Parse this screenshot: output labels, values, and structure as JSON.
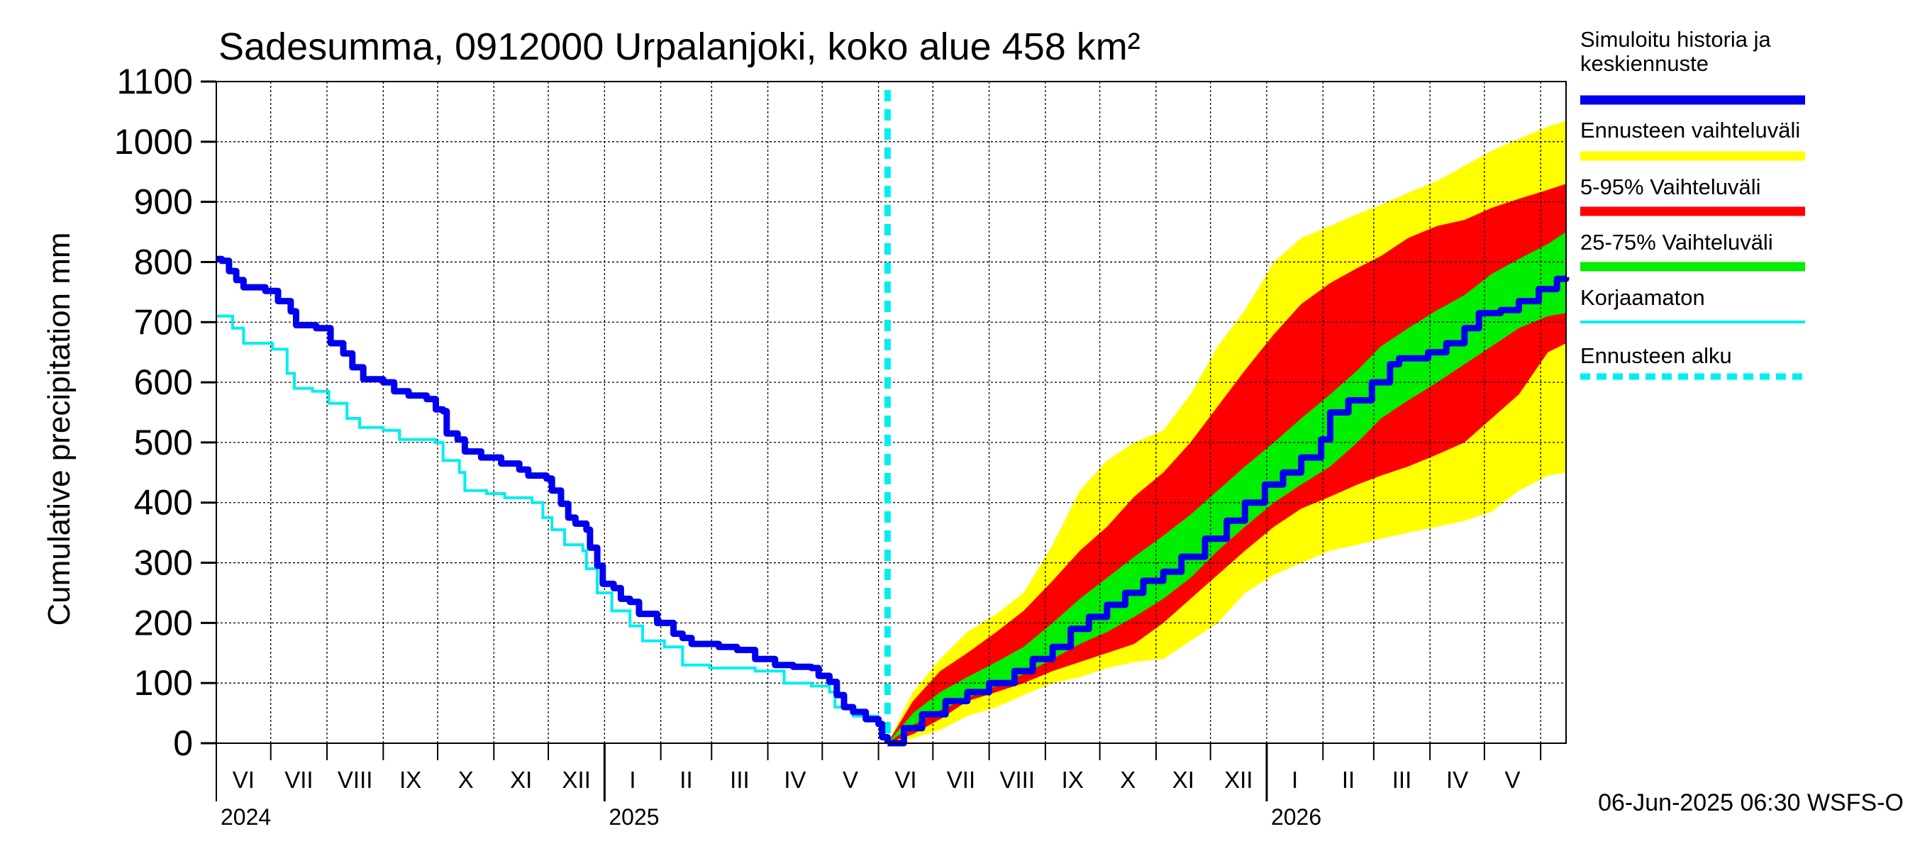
{
  "chart_data": {
    "type": "area",
    "title": "Sadesumma, 0912000 Urpalanjoki, koko alue 458 km²",
    "ylabel": "Cumulative precipitation   mm",
    "xlabel": "",
    "ylim": [
      0,
      1100
    ],
    "xlim": [
      "2024-06-01",
      "2026-06-15"
    ],
    "y_ticks": [
      0,
      100,
      200,
      300,
      400,
      500,
      600,
      700,
      800,
      900,
      1000,
      1100
    ],
    "grid": true,
    "legend_position": "right",
    "month_labels": [
      "VI",
      "VII",
      "VIII",
      "IX",
      "X",
      "XI",
      "XII",
      "I",
      "II",
      "III",
      "IV",
      "V",
      "VI",
      "VII",
      "VIII",
      "IX",
      "X",
      "XI",
      "XII",
      "I",
      "II",
      "III",
      "IV",
      "V"
    ],
    "year_labels": [
      {
        "label": "2024",
        "date": "2024-06-01"
      },
      {
        "label": "2025",
        "date": "2025-01-01"
      },
      {
        "label": "2026",
        "date": "2026-01-01"
      }
    ],
    "forecast_start": "2025-06-06",
    "footer": "06-Jun-2025 06:30 WSFS-O",
    "colors": {
      "history": "#0000ee",
      "uncorrected": "#00eeee",
      "range_full": "#ffff00",
      "range_5_95": "#ff0000",
      "range_25_75": "#00ee00",
      "forecast_start": "#00eeee"
    },
    "legend": [
      {
        "label": "Simuloitu historia ja keskiennuste",
        "color": "#0000ee",
        "style": "thick"
      },
      {
        "label": "Ennusteen vaihteluväli",
        "color": "#ffff00",
        "style": "thick"
      },
      {
        "label": "5-95% Vaihteluväli",
        "color": "#ff0000",
        "style": "thick"
      },
      {
        "label": "25-75% Vaihteluväli",
        "color": "#00ee00",
        "style": "thick"
      },
      {
        "label": "Korjaamaton",
        "color": "#00eeee",
        "style": "thin"
      },
      {
        "label": "Ennusteen alku",
        "color": "#00eeee",
        "style": "dashed"
      }
    ],
    "series": [
      {
        "name": "Simuloitu historia ja keskiennuste",
        "points": [
          [
            "2024-06-01",
            805
          ],
          [
            "2024-06-04",
            802
          ],
          [
            "2024-06-08",
            785
          ],
          [
            "2024-06-12",
            770
          ],
          [
            "2024-06-16",
            758
          ],
          [
            "2024-06-28",
            752
          ],
          [
            "2024-07-05",
            735
          ],
          [
            "2024-07-12",
            718
          ],
          [
            "2024-07-15",
            695
          ],
          [
            "2024-07-26",
            690
          ],
          [
            "2024-08-03",
            665
          ],
          [
            "2024-08-10",
            648
          ],
          [
            "2024-08-15",
            625
          ],
          [
            "2024-08-21",
            605
          ],
          [
            "2024-09-01",
            600
          ],
          [
            "2024-09-07",
            585
          ],
          [
            "2024-09-15",
            578
          ],
          [
            "2024-09-25",
            572
          ],
          [
            "2024-09-30",
            555
          ],
          [
            "2024-10-04",
            552
          ],
          [
            "2024-10-06",
            515
          ],
          [
            "2024-10-12",
            505
          ],
          [
            "2024-10-16",
            485
          ],
          [
            "2024-10-25",
            475
          ],
          [
            "2024-11-05",
            465
          ],
          [
            "2024-11-15",
            455
          ],
          [
            "2024-11-20",
            445
          ],
          [
            "2024-11-30",
            440
          ],
          [
            "2024-12-03",
            420
          ],
          [
            "2024-12-08",
            398
          ],
          [
            "2024-12-12",
            375
          ],
          [
            "2024-12-16",
            365
          ],
          [
            "2024-12-22",
            355
          ],
          [
            "2024-12-24",
            325
          ],
          [
            "2024-12-28",
            295
          ],
          [
            "2024-12-31",
            265
          ],
          [
            "2025-01-06",
            258
          ],
          [
            "2025-01-10",
            240
          ],
          [
            "2025-01-15",
            235
          ],
          [
            "2025-01-20",
            215
          ],
          [
            "2025-01-30",
            200
          ],
          [
            "2025-02-08",
            182
          ],
          [
            "2025-02-13",
            175
          ],
          [
            "2025-02-18",
            165
          ],
          [
            "2025-03-05",
            160
          ],
          [
            "2025-03-15",
            155
          ],
          [
            "2025-03-25",
            140
          ],
          [
            "2025-04-05",
            130
          ],
          [
            "2025-04-15",
            127
          ],
          [
            "2025-04-25",
            125
          ],
          [
            "2025-04-29",
            112
          ],
          [
            "2025-05-05",
            102
          ],
          [
            "2025-05-09",
            80
          ],
          [
            "2025-05-13",
            60
          ],
          [
            "2025-05-18",
            52
          ],
          [
            "2025-05-25",
            40
          ],
          [
            "2025-06-01",
            32
          ],
          [
            "2025-06-03",
            10
          ],
          [
            "2025-06-06",
            0
          ]
        ]
      },
      {
        "name": "Korjaamaton",
        "points": [
          [
            "2024-06-01",
            710
          ],
          [
            "2024-06-06",
            710
          ],
          [
            "2024-06-10",
            690
          ],
          [
            "2024-06-16",
            665
          ],
          [
            "2024-07-02",
            655
          ],
          [
            "2024-07-10",
            615
          ],
          [
            "2024-07-14",
            590
          ],
          [
            "2024-07-24",
            585
          ],
          [
            "2024-08-02",
            565
          ],
          [
            "2024-08-12",
            540
          ],
          [
            "2024-08-19",
            525
          ],
          [
            "2024-09-01",
            520
          ],
          [
            "2024-09-10",
            505
          ],
          [
            "2024-09-30",
            500
          ],
          [
            "2024-10-04",
            470
          ],
          [
            "2024-10-13",
            450
          ],
          [
            "2024-10-16",
            420
          ],
          [
            "2024-10-28",
            415
          ],
          [
            "2024-11-07",
            408
          ],
          [
            "2024-11-22",
            400
          ],
          [
            "2024-11-28",
            375
          ],
          [
            "2024-12-03",
            355
          ],
          [
            "2024-12-10",
            330
          ],
          [
            "2024-12-20",
            320
          ],
          [
            "2024-12-22",
            290
          ],
          [
            "2024-12-28",
            250
          ],
          [
            "2025-01-05",
            220
          ],
          [
            "2025-01-15",
            195
          ],
          [
            "2025-01-22",
            170
          ],
          [
            "2025-02-03",
            160
          ],
          [
            "2025-02-13",
            130
          ],
          [
            "2025-02-28",
            125
          ],
          [
            "2025-03-25",
            120
          ],
          [
            "2025-04-10",
            100
          ],
          [
            "2025-04-25",
            95
          ],
          [
            "2025-05-05",
            85
          ],
          [
            "2025-05-08",
            60
          ],
          [
            "2025-05-18",
            45
          ],
          [
            "2025-05-31",
            35
          ],
          [
            "2025-06-03",
            10
          ],
          [
            "2025-06-06",
            0
          ]
        ]
      },
      {
        "name": "Keskiennuste",
        "points": [
          [
            "2025-06-06",
            0
          ],
          [
            "2025-06-15",
            25
          ],
          [
            "2025-06-25",
            48
          ],
          [
            "2025-07-08",
            70
          ],
          [
            "2025-07-20",
            85
          ],
          [
            "2025-08-01",
            100
          ],
          [
            "2025-08-15",
            120
          ],
          [
            "2025-08-25",
            140
          ],
          [
            "2025-09-05",
            160
          ],
          [
            "2025-09-15",
            190
          ],
          [
            "2025-09-25",
            210
          ],
          [
            "2025-10-05",
            230
          ],
          [
            "2025-10-15",
            250
          ],
          [
            "2025-10-25",
            270
          ],
          [
            "2025-11-05",
            285
          ],
          [
            "2025-11-15",
            310
          ],
          [
            "2025-11-28",
            340
          ],
          [
            "2025-12-10",
            370
          ],
          [
            "2025-12-20",
            400
          ],
          [
            "2025-12-31",
            430
          ],
          [
            "2026-01-10",
            450
          ],
          [
            "2026-01-20",
            475
          ],
          [
            "2026-01-31",
            505
          ],
          [
            "2026-02-05",
            550
          ],
          [
            "2026-02-15",
            570
          ],
          [
            "2026-02-28",
            600
          ],
          [
            "2026-03-10",
            630
          ],
          [
            "2026-03-15",
            640
          ],
          [
            "2026-03-31",
            650
          ],
          [
            "2026-04-10",
            665
          ],
          [
            "2026-04-20",
            690
          ],
          [
            "2026-04-28",
            715
          ],
          [
            "2026-05-10",
            720
          ],
          [
            "2026-05-20",
            735
          ],
          [
            "2026-05-31",
            755
          ],
          [
            "2026-06-10",
            772
          ],
          [
            "2026-06-15",
            775
          ]
        ]
      },
      {
        "name": "Ennusteen vaihteluväli",
        "points": [
          [
            "2025-06-06",
            0,
            0
          ],
          [
            "2025-06-20",
            8,
            85
          ],
          [
            "2025-07-05",
            22,
            140
          ],
          [
            "2025-07-20",
            45,
            185
          ],
          [
            "2025-08-05",
            60,
            215
          ],
          [
            "2025-08-20",
            80,
            250
          ],
          [
            "2025-09-05",
            100,
            330
          ],
          [
            "2025-09-20",
            110,
            420
          ],
          [
            "2025-10-05",
            125,
            470
          ],
          [
            "2025-10-20",
            135,
            500
          ],
          [
            "2025-11-05",
            140,
            520
          ],
          [
            "2025-11-20",
            170,
            580
          ],
          [
            "2025-12-05",
            200,
            660
          ],
          [
            "2025-12-20",
            250,
            720
          ],
          [
            "2026-01-05",
            280,
            800
          ],
          [
            "2026-01-20",
            300,
            840
          ],
          [
            "2026-02-05",
            320,
            860
          ],
          [
            "2026-02-20",
            330,
            880
          ],
          [
            "2026-03-05",
            340,
            895
          ],
          [
            "2026-03-20",
            350,
            915
          ],
          [
            "2026-04-05",
            360,
            935
          ],
          [
            "2026-04-20",
            370,
            960
          ],
          [
            "2026-05-05",
            385,
            985
          ],
          [
            "2026-05-20",
            420,
            1005
          ],
          [
            "2026-06-05",
            445,
            1025
          ],
          [
            "2026-06-15",
            450,
            1035
          ]
        ]
      },
      {
        "name": "5-95% Vaihteluväli",
        "points": [
          [
            "2025-06-06",
            0,
            0
          ],
          [
            "2025-06-20",
            15,
            70
          ],
          [
            "2025-07-05",
            40,
            120
          ],
          [
            "2025-07-20",
            70,
            150
          ],
          [
            "2025-08-05",
            85,
            185
          ],
          [
            "2025-08-20",
            100,
            220
          ],
          [
            "2025-09-05",
            120,
            270
          ],
          [
            "2025-09-20",
            135,
            320
          ],
          [
            "2025-10-05",
            150,
            360
          ],
          [
            "2025-10-20",
            165,
            410
          ],
          [
            "2025-11-05",
            200,
            450
          ],
          [
            "2025-11-20",
            240,
            500
          ],
          [
            "2025-12-05",
            280,
            560
          ],
          [
            "2025-12-20",
            320,
            620
          ],
          [
            "2026-01-05",
            360,
            680
          ],
          [
            "2026-01-20",
            390,
            730
          ],
          [
            "2026-02-05",
            410,
            765
          ],
          [
            "2026-02-20",
            430,
            790
          ],
          [
            "2026-03-05",
            445,
            810
          ],
          [
            "2026-03-20",
            460,
            840
          ],
          [
            "2026-04-05",
            480,
            860
          ],
          [
            "2026-04-20",
            500,
            870
          ],
          [
            "2026-05-05",
            540,
            890
          ],
          [
            "2026-05-20",
            580,
            905
          ],
          [
            "2026-06-05",
            650,
            920
          ],
          [
            "2026-06-15",
            665,
            930
          ]
        ]
      },
      {
        "name": "25-75% Vaihteluväli",
        "points": [
          [
            "2025-06-06",
            0,
            0
          ],
          [
            "2025-06-20",
            30,
            50
          ],
          [
            "2025-07-05",
            55,
            85
          ],
          [
            "2025-07-20",
            75,
            110
          ],
          [
            "2025-08-05",
            95,
            135
          ],
          [
            "2025-08-20",
            115,
            160
          ],
          [
            "2025-09-05",
            140,
            200
          ],
          [
            "2025-09-20",
            165,
            240
          ],
          [
            "2025-10-05",
            185,
            275
          ],
          [
            "2025-10-20",
            210,
            310
          ],
          [
            "2025-11-05",
            240,
            345
          ],
          [
            "2025-11-20",
            275,
            380
          ],
          [
            "2025-12-05",
            320,
            420
          ],
          [
            "2025-12-20",
            360,
            460
          ],
          [
            "2026-01-05",
            400,
            500
          ],
          [
            "2026-01-20",
            430,
            540
          ],
          [
            "2026-02-05",
            460,
            580
          ],
          [
            "2026-02-20",
            500,
            620
          ],
          [
            "2026-03-05",
            540,
            660
          ],
          [
            "2026-03-20",
            570,
            690
          ],
          [
            "2026-04-05",
            600,
            720
          ],
          [
            "2026-04-20",
            630,
            745
          ],
          [
            "2026-05-05",
            660,
            780
          ],
          [
            "2026-05-20",
            690,
            805
          ],
          [
            "2026-06-05",
            710,
            830
          ],
          [
            "2026-06-15",
            715,
            850
          ]
        ]
      }
    ]
  }
}
